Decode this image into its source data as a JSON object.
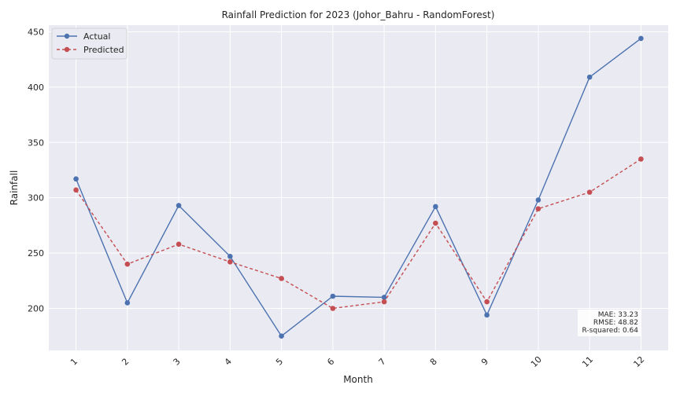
{
  "chart_data": {
    "type": "line",
    "title": "Rainfall Prediction for 2023 (Johor_Bahru - RandomForest)",
    "xlabel": "Month",
    "ylabel": "Rainfall",
    "x": [
      1,
      2,
      3,
      4,
      5,
      6,
      7,
      8,
      9,
      10,
      11,
      12
    ],
    "ylim": [
      162,
      456
    ],
    "yticks": [
      200,
      250,
      300,
      350,
      400,
      450
    ],
    "grid": true,
    "legend_position": "top-left",
    "series": [
      {
        "name": "Actual",
        "color": "#4c72b0",
        "style": "solid",
        "values": [
          317,
          205,
          293,
          247,
          175,
          211,
          210,
          292,
          194,
          298,
          409,
          444
        ]
      },
      {
        "name": "Predicted",
        "color": "#c44e52",
        "style": "dashed",
        "values": [
          307,
          240,
          258,
          242,
          227,
          200,
          206,
          277,
          206,
          290,
          305,
          335
        ]
      }
    ],
    "metrics": {
      "mae": "MAE: 33.23",
      "rmse": "RMSE: 48.82",
      "r2": "R-squared: 0.64"
    }
  }
}
